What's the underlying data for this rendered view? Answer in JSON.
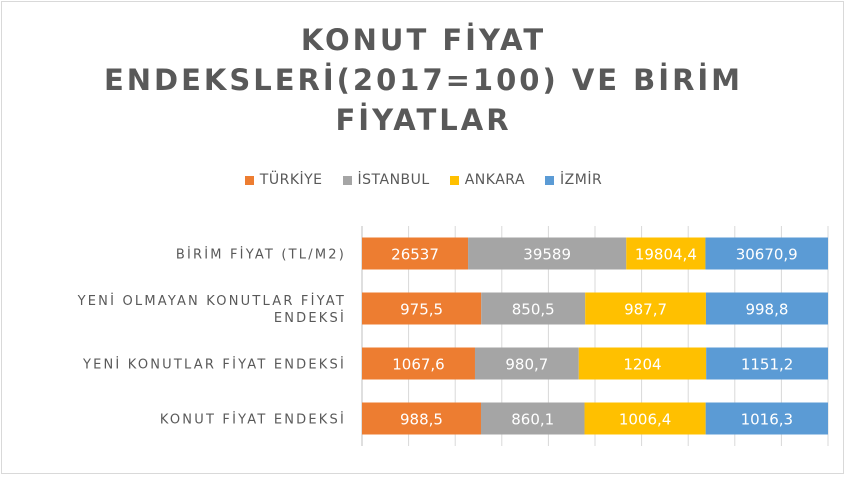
{
  "chart_data": {
    "type": "bar",
    "orientation": "horizontal",
    "stacked": "percent",
    "title": "KONUT FİYAT ENDEKSLERİ(2017=100)  VE BİRİM FİYATLAR",
    "title_lines": [
      "KONUT FİYAT",
      "ENDEKSLERİ(2017=100)  VE BİRİM",
      "FİYATLAR"
    ],
    "categories": [
      "BİRİM FİYAT (TL/M2)",
      "YENİ OLMAYAN KONUTLAR FİYAT ENDEKSİ",
      "YENİ KONUTLAR FİYAT ENDEKSİ",
      "KONUT FİYAT ENDEKSİ"
    ],
    "category_lines": [
      [
        "BİRİM FİYAT (TL/M2)"
      ],
      [
        "YENİ OLMAYAN KONUTLAR FİYAT",
        "ENDEKSİ"
      ],
      [
        "YENİ KONUTLAR FİYAT ENDEKSİ"
      ],
      [
        "KONUT FİYAT ENDEKSİ"
      ]
    ],
    "series": [
      {
        "name": "TÜRKİYE",
        "color": "#ed7d31",
        "values": [
          26537,
          975.5,
          1067.6,
          988.5
        ],
        "labels": [
          "26537",
          "975,5",
          "1067,6",
          "988,5"
        ]
      },
      {
        "name": "İSTANBUL",
        "color": "#a5a5a5",
        "values": [
          39589,
          850.5,
          980.7,
          860.1
        ],
        "labels": [
          "39589",
          "850,5",
          "980,7",
          "860,1"
        ]
      },
      {
        "name": "ANKARA",
        "color": "#ffc000",
        "values": [
          19804.4,
          987.7,
          1204,
          1006.4
        ],
        "labels": [
          "19804,4",
          "987,7",
          "1204",
          "1006,4"
        ]
      },
      {
        "name": "İZMİR",
        "color": "#5b9bd5",
        "values": [
          30670.9,
          998.8,
          1151.2,
          1016.3
        ],
        "labels": [
          "30670,9",
          "998,8",
          "1151,2",
          "1016,3"
        ]
      }
    ],
    "legend_position": "top",
    "grid": true
  }
}
